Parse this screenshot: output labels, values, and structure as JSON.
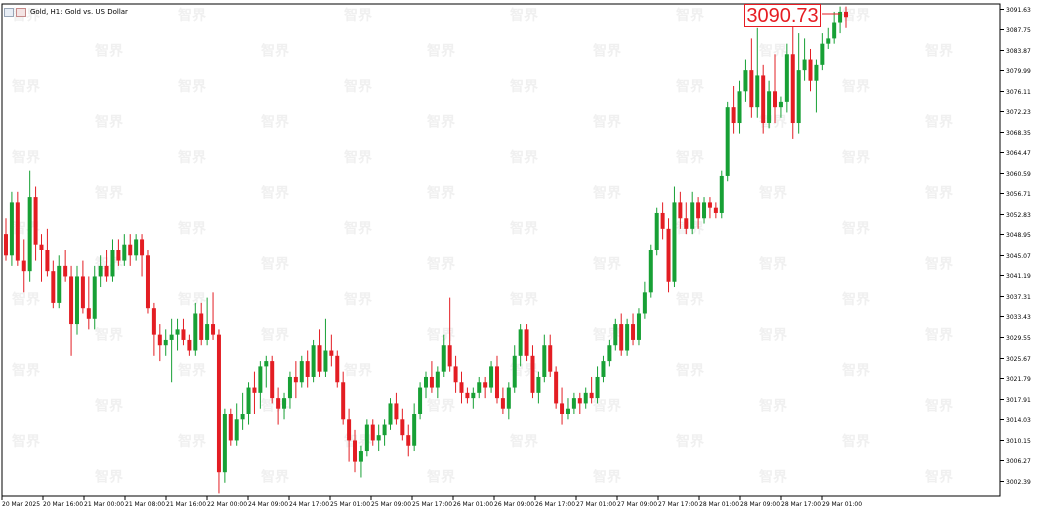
{
  "window": {
    "title": "Gold, H1:  Gold vs. US Dollar"
  },
  "price_box": {
    "value": "3090.73"
  },
  "watermark": {
    "text": "智界"
  },
  "colors": {
    "bull": "#17a035",
    "bear": "#e31d23",
    "grid": "#ebebeb",
    "axis": "#000000",
    "price_line": "#e31d23"
  },
  "chart_data": {
    "type": "candlestick",
    "title": "Gold, H1:  Gold vs. US Dollar",
    "symbol": "Gold",
    "timeframe": "H1",
    "ylim": [
      2999.5,
      3092.5
    ],
    "yticks": [
      "3091.63",
      "3087.75",
      "3083.87",
      "3079.99",
      "3076.11",
      "3072.23",
      "3068.35",
      "3064.47",
      "3060.59",
      "3056.71",
      "3052.83",
      "3048.95",
      "3045.07",
      "3041.19",
      "3037.31",
      "3033.43",
      "3029.55",
      "3025.67",
      "3021.79",
      "3017.91",
      "3014.03",
      "3010.15",
      "3006.27",
      "3002.39"
    ],
    "xticks": [
      "20 Mar 2025",
      "20 Mar 16:00",
      "21 Mar 00:00",
      "21 Mar 08:00",
      "21 Mar 16:00",
      "22 Mar 00:00",
      "24 Mar 09:00",
      "24 Mar 17:00",
      "25 Mar 01:00",
      "25 Mar 09:00",
      "25 Mar 17:00",
      "26 Mar 01:00",
      "26 Mar 09:00",
      "26 Mar 17:00",
      "27 Mar 01:00",
      "27 Mar 09:00",
      "27 Mar 17:00",
      "28 Mar 01:00",
      "28 Mar 09:00",
      "28 Mar 17:00",
      "29 Mar 01:00"
    ],
    "last_price": 3090.73,
    "candles": [
      [
        3049,
        3052,
        3044,
        3045
      ],
      [
        3045,
        3057,
        3043,
        3055
      ],
      [
        3055,
        3057,
        3043,
        3044
      ],
      [
        3044,
        3048,
        3038,
        3042
      ],
      [
        3042,
        3061,
        3040,
        3056
      ],
      [
        3056,
        3058,
        3044,
        3047
      ],
      [
        3047,
        3049,
        3040,
        3046
      ],
      [
        3046,
        3050,
        3041,
        3042
      ],
      [
        3042,
        3044,
        3035,
        3036
      ],
      [
        3036,
        3045,
        3035,
        3043
      ],
      [
        3043,
        3046,
        3040,
        3041
      ],
      [
        3041,
        3043,
        3026,
        3032
      ],
      [
        3032,
        3043,
        3030,
        3041
      ],
      [
        3041,
        3044,
        3034,
        3035
      ],
      [
        3035,
        3041,
        3031,
        3033
      ],
      [
        3033,
        3043,
        3031,
        3041
      ],
      [
        3041,
        3045,
        3039,
        3043
      ],
      [
        3043,
        3046,
        3040,
        3041
      ],
      [
        3041,
        3048,
        3040,
        3046
      ],
      [
        3046,
        3048,
        3043,
        3044
      ],
      [
        3044,
        3049,
        3043,
        3047
      ],
      [
        3047,
        3049,
        3043,
        3045
      ],
      [
        3045,
        3049,
        3044,
        3048
      ],
      [
        3048,
        3049,
        3041,
        3045
      ],
      [
        3045,
        3046,
        3034,
        3035
      ],
      [
        3035,
        3036,
        3026,
        3030
      ],
      [
        3030,
        3032,
        3025,
        3028
      ],
      [
        3028,
        3031,
        3026,
        3029
      ],
      [
        3029,
        3033,
        3021,
        3030
      ],
      [
        3030,
        3033,
        3027,
        3031
      ],
      [
        3031,
        3033,
        3028,
        3029
      ],
      [
        3029,
        3030,
        3026,
        3027
      ],
      [
        3027,
        3036,
        3026,
        3034
      ],
      [
        3034,
        3036,
        3028,
        3029
      ],
      [
        3029,
        3037,
        3028,
        3032
      ],
      [
        3032,
        3038,
        3029,
        3030
      ],
      [
        3030,
        3031,
        3000,
        3004
      ],
      [
        3004,
        3016,
        3002,
        3015
      ],
      [
        3015,
        3016,
        3009,
        3010
      ],
      [
        3010,
        3017,
        3009,
        3014
      ],
      [
        3014,
        3019,
        3012,
        3015
      ],
      [
        3015,
        3021,
        3013,
        3020
      ],
      [
        3020,
        3023,
        3015,
        3019
      ],
      [
        3019,
        3025,
        3016,
        3024
      ],
      [
        3024,
        3026,
        3020,
        3025
      ],
      [
        3025,
        3026,
        3017,
        3018
      ],
      [
        3018,
        3020,
        3013,
        3016
      ],
      [
        3016,
        3019,
        3014,
        3018
      ],
      [
        3018,
        3023,
        3016,
        3022
      ],
      [
        3022,
        3025,
        3018,
        3021
      ],
      [
        3021,
        3026,
        3020,
        3025
      ],
      [
        3025,
        3027,
        3020,
        3022
      ],
      [
        3022,
        3029,
        3021,
        3028
      ],
      [
        3028,
        3031,
        3022,
        3023
      ],
      [
        3023,
        3033,
        3022,
        3027
      ],
      [
        3027,
        3030,
        3024,
        3026
      ],
      [
        3026,
        3027,
        3020,
        3021
      ],
      [
        3021,
        3023,
        3013,
        3014
      ],
      [
        3014,
        3016,
        3006,
        3010
      ],
      [
        3010,
        3012,
        3004,
        3006
      ],
      [
        3006,
        3009,
        3003,
        3008
      ],
      [
        3008,
        3014,
        3007,
        3013
      ],
      [
        3013,
        3014,
        3009,
        3010
      ],
      [
        3010,
        3013,
        3008,
        3011
      ],
      [
        3011,
        3014,
        3009,
        3013
      ],
      [
        3013,
        3018,
        3012,
        3017
      ],
      [
        3017,
        3019,
        3013,
        3014
      ],
      [
        3014,
        3016,
        3010,
        3011
      ],
      [
        3011,
        3013,
        3007,
        3009
      ],
      [
        3009,
        3017,
        3008,
        3015
      ],
      [
        3015,
        3021,
        3014,
        3020
      ],
      [
        3020,
        3023,
        3018,
        3022
      ],
      [
        3022,
        3025,
        3019,
        3020
      ],
      [
        3020,
        3024,
        3018,
        3023
      ],
      [
        3023,
        3030,
        3022,
        3028
      ],
      [
        3028,
        3037,
        3023,
        3024
      ],
      [
        3024,
        3026,
        3019,
        3021
      ],
      [
        3021,
        3023,
        3017,
        3019
      ],
      [
        3019,
        3020,
        3017,
        3018
      ],
      [
        3018,
        3020,
        3016,
        3019
      ],
      [
        3019,
        3022,
        3018,
        3021
      ],
      [
        3021,
        3022,
        3018,
        3020
      ],
      [
        3020,
        3025,
        3019,
        3024
      ],
      [
        3024,
        3026,
        3017,
        3018
      ],
      [
        3018,
        3020,
        3015,
        3016
      ],
      [
        3016,
        3021,
        3014,
        3020
      ],
      [
        3020,
        3028,
        3019,
        3026
      ],
      [
        3026,
        3032,
        3024,
        3031
      ],
      [
        3031,
        3032,
        3025,
        3026
      ],
      [
        3026,
        3028,
        3018,
        3019
      ],
      [
        3019,
        3023,
        3017,
        3022
      ],
      [
        3022,
        3030,
        3021,
        3028
      ],
      [
        3028,
        3030,
        3022,
        3023
      ],
      [
        3023,
        3024,
        3016,
        3017
      ],
      [
        3017,
        3020,
        3013,
        3015
      ],
      [
        3015,
        3018,
        3014,
        3016
      ],
      [
        3016,
        3019,
        3015,
        3018
      ],
      [
        3018,
        3019,
        3015,
        3017
      ],
      [
        3017,
        3020,
        3016,
        3019
      ],
      [
        3019,
        3022,
        3017,
        3018
      ],
      [
        3018,
        3024,
        3017,
        3022
      ],
      [
        3022,
        3026,
        3021,
        3025
      ],
      [
        3025,
        3029,
        3024,
        3028
      ],
      [
        3028,
        3033,
        3027,
        3032
      ],
      [
        3032,
        3034,
        3026,
        3027
      ],
      [
        3027,
        3033,
        3026,
        3032
      ],
      [
        3032,
        3034,
        3028,
        3029
      ],
      [
        3029,
        3035,
        3028,
        3034
      ],
      [
        3034,
        3040,
        3033,
        3038
      ],
      [
        3038,
        3047,
        3037,
        3046
      ],
      [
        3046,
        3054,
        3045,
        3053
      ],
      [
        3053,
        3055,
        3048,
        3050
      ],
      [
        3050,
        3052,
        3038,
        3040
      ],
      [
        3040,
        3058,
        3039,
        3055
      ],
      [
        3055,
        3057,
        3050,
        3052
      ],
      [
        3052,
        3055,
        3049,
        3050
      ],
      [
        3050,
        3057,
        3049,
        3055
      ],
      [
        3055,
        3056,
        3050,
        3052
      ],
      [
        3052,
        3056,
        3051,
        3055
      ],
      [
        3055,
        3056,
        3052,
        3054
      ],
      [
        3054,
        3055,
        3052,
        3053
      ],
      [
        3053,
        3061,
        3052,
        3060
      ],
      [
        3060,
        3074,
        3059,
        3073
      ],
      [
        3073,
        3077,
        3068,
        3070
      ],
      [
        3070,
        3078,
        3068,
        3076
      ],
      [
        3076,
        3082,
        3074,
        3080
      ],
      [
        3080,
        3086,
        3071,
        3073
      ],
      [
        3073,
        3088,
        3071,
        3079
      ],
      [
        3079,
        3081,
        3068,
        3070
      ],
      [
        3070,
        3078,
        3069,
        3076
      ],
      [
        3076,
        3083,
        3070,
        3073
      ],
      [
        3073,
        3075,
        3071,
        3074
      ],
      [
        3074,
        3085,
        3072,
        3083
      ],
      [
        3083,
        3089,
        3067,
        3070
      ],
      [
        3070,
        3087,
        3068,
        3080
      ],
      [
        3080,
        3086,
        3078,
        3082
      ],
      [
        3082,
        3084,
        3076,
        3078
      ],
      [
        3078,
        3082,
        3072,
        3081
      ],
      [
        3081,
        3087,
        3080,
        3085
      ],
      [
        3085,
        3088,
        3084,
        3086
      ],
      [
        3086,
        3091,
        3085,
        3089
      ],
      [
        3089,
        3092,
        3087,
        3091
      ],
      [
        3091,
        3092,
        3088,
        3090
      ]
    ]
  }
}
